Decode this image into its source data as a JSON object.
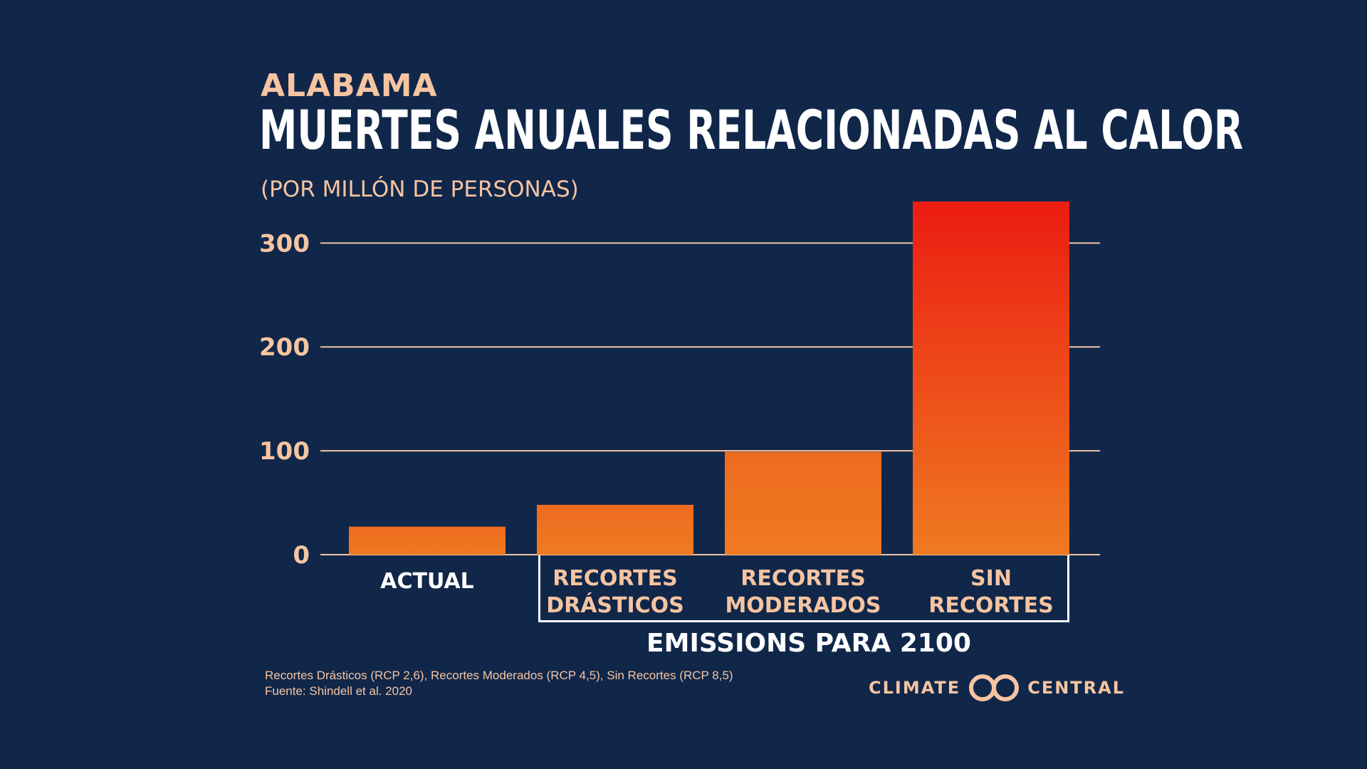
{
  "header": {
    "kicker": "ALABAMA",
    "title": "MUERTES ANUALES RELACIONADAS AL CALOR",
    "subtitle": "(POR MILLÓN DE PERSONAS)"
  },
  "chart_data": {
    "type": "bar",
    "categories": [
      "ACTUAL",
      "RECORTES DRÁSTICOS",
      "RECORTES MODERADOS",
      "SIN RECORTES"
    ],
    "category_lines": [
      [
        "ACTUAL"
      ],
      [
        "RECORTES",
        "DRÁSTICOS"
      ],
      [
        "RECORTES",
        "MODERADOS"
      ],
      [
        "SIN",
        "RECORTES"
      ]
    ],
    "values": [
      27,
      48,
      99,
      340
    ],
    "yticks": [
      0,
      100,
      200,
      300
    ],
    "ylim": [
      0,
      340
    ],
    "grid": true,
    "group_label": "EMISSIONS PARA 2100",
    "grouped_categories": [
      "RECORTES DRÁSTICOS",
      "RECORTES MODERADOS",
      "SIN RECORTES"
    ],
    "colors": {
      "bar_bottom": "#ef7a21",
      "bar_top_low": "#ee6b1f",
      "bar_top_high": "#ec1c12",
      "grid": "#f6c4a1",
      "tick_label": "#f6c4a1",
      "category_label_current": "#ffffff",
      "category_label_scenario": "#f6c4a1"
    }
  },
  "footer": {
    "note_line1": "Recortes Drásticos (RCP 2,6), Recortes Moderados (RCP 4,5), Sin Recortes (RCP 8,5)",
    "note_line2": "Fuente: Shindell et al. 2020",
    "logo_left": "CLIMATE",
    "logo_right": "CENTRAL"
  },
  "colors": {
    "background": "#10274a",
    "accent": "#f6c4a1"
  }
}
